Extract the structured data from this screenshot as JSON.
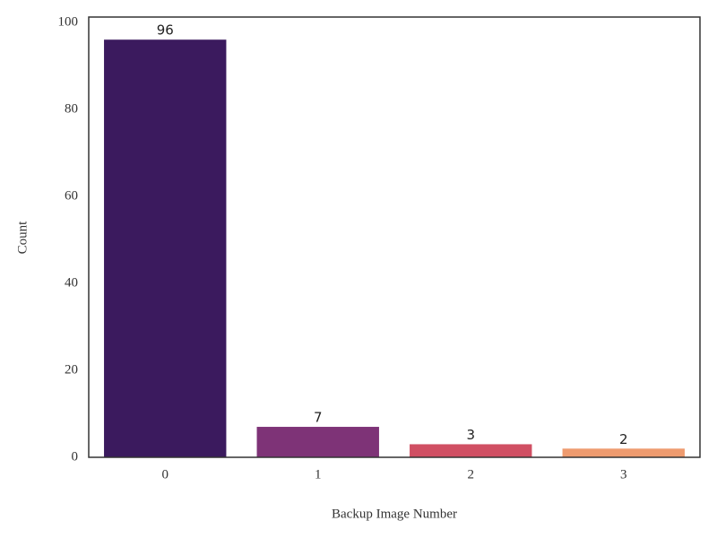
{
  "chart_data": {
    "type": "bar",
    "categories": [
      "0",
      "1",
      "2",
      "3"
    ],
    "values": [
      96,
      7,
      3,
      2
    ],
    "colors": [
      "#3b1a5e",
      "#7e3377",
      "#d04f63",
      "#ee9b6f"
    ],
    "xlabel": "Backup Image Number",
    "ylabel": "Count",
    "ylim": [
      0,
      101.2
    ],
    "yticks": [
      0,
      20,
      40,
      60,
      80,
      100
    ]
  }
}
